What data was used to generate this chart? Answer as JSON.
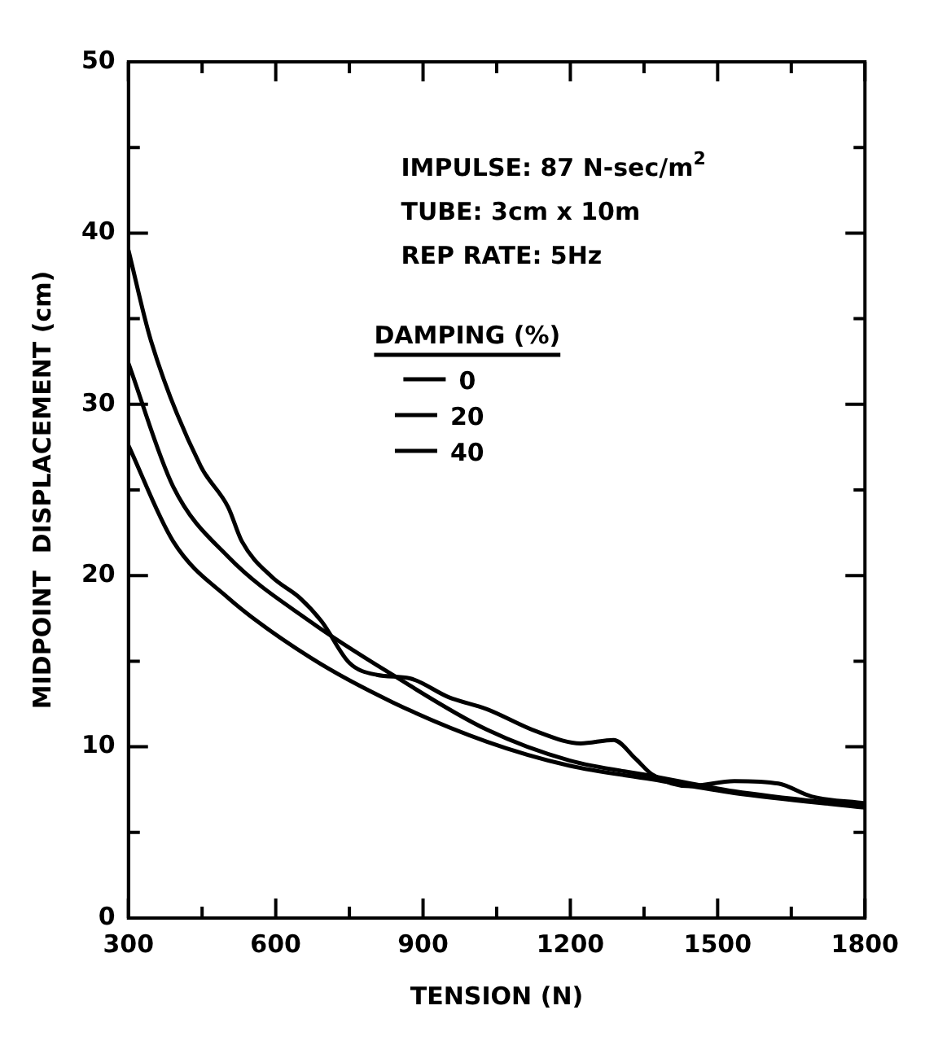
{
  "chart_data": {
    "type": "line",
    "xlabel": "TENSION (N)",
    "ylabel": "MIDPOINT  DISPLACEMENT (cm)",
    "legend_title": "DAMPING (%)",
    "legend": "top",
    "annotations": [
      "IMPULSE: 87 N-sec/m$^{2}$",
      "TUBE: 3cm x 10m",
      "REP RATE: 5Hz"
    ],
    "xlim": [
      300,
      1800
    ],
    "ylim": [
      0,
      50
    ],
    "xticks": [
      300,
      {
        "value": 450,
        "label": null
      },
      600,
      {
        "value": 750,
        "label": null
      },
      900,
      {
        "value": 1050,
        "label": null
      },
      1200,
      {
        "value": 1350,
        "label": null
      },
      1500,
      {
        "value": 1650,
        "label": null
      },
      1800
    ],
    "yticks": [
      0,
      {
        "value": 5,
        "label": null
      },
      10,
      {
        "value": 15,
        "label": null
      },
      20,
      {
        "value": 25,
        "label": null
      },
      30,
      {
        "value": 35,
        "label": null
      },
      40,
      {
        "value": 45,
        "label": null
      },
      50
    ],
    "grid": false,
    "marker": "none",
    "line_style": "solid",
    "series": [
      {
        "name": "0",
        "color": "#000000",
        "x": [
          300,
          346,
          447,
          503,
          531,
          593,
          649,
          694,
          750,
          806,
          873,
          952,
          1030,
          1131,
          1221,
          1288,
          1333,
          1366,
          1444,
          1534,
          1624,
          1691,
          1800
        ],
        "values": [
          39,
          33.7,
          26.4,
          24.0,
          22.0,
          19.9,
          18.7,
          17.3,
          14.9,
          14.2,
          14.0,
          12.9,
          12.2,
          10.9,
          10.2,
          10.4,
          9.3,
          8.4,
          7.7,
          8.0,
          7.85,
          7.1,
          6.7
        ]
      },
      {
        "name": "20",
        "color": "#000000",
        "x": [
          300,
          391,
          503,
          671,
          838,
          1030,
          1198,
          1366,
          1534,
          1800
        ],
        "values": [
          32.4,
          25.2,
          21.1,
          17.3,
          14.2,
          11.0,
          9.2,
          8.3,
          7.4,
          6.5
        ]
      },
      {
        "name": "40",
        "color": "#000000",
        "x": [
          300,
          391,
          503,
          671,
          838,
          1030,
          1198,
          1366,
          1534,
          1800
        ],
        "values": [
          27.6,
          22.0,
          18.7,
          15.2,
          12.6,
          10.3,
          8.9,
          8.1,
          7.3,
          6.45
        ]
      }
    ]
  }
}
